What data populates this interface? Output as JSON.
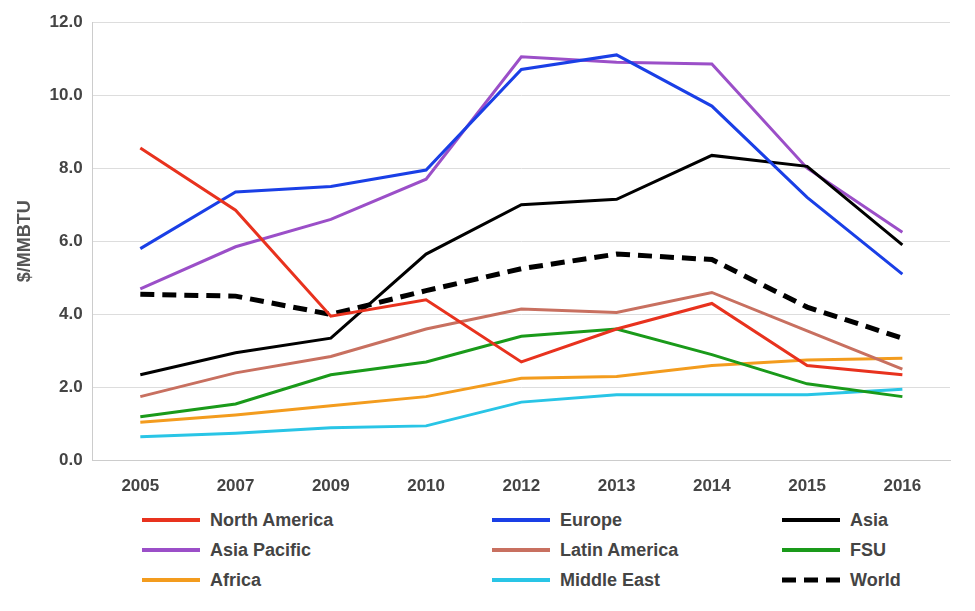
{
  "chart_data": {
    "type": "line",
    "y_label": "$/MMBTU",
    "categories": [
      "2005",
      "2007",
      "2009",
      "2010",
      "2012",
      "2013",
      "2014",
      "2015",
      "2016"
    ],
    "series": [
      {
        "name": "North America",
        "color": "#e8321e",
        "values": [
          8.55,
          6.85,
          3.95,
          4.4,
          2.7,
          3.6,
          4.3,
          2.6,
          2.35
        ]
      },
      {
        "name": "Europe",
        "color": "#1a3fe6",
        "values": [
          5.8,
          7.35,
          7.5,
          7.95,
          10.7,
          11.1,
          9.7,
          7.2,
          5.1
        ]
      },
      {
        "name": "Asia",
        "color": "#000000",
        "values": [
          2.35,
          2.95,
          3.35,
          5.65,
          7.0,
          7.15,
          8.35,
          8.05,
          5.9
        ]
      },
      {
        "name": "Asia Pacific",
        "color": "#9b4fc8",
        "values": [
          4.7,
          5.85,
          6.6,
          7.7,
          11.05,
          10.9,
          10.85,
          8.0,
          6.25
        ]
      },
      {
        "name": "Latin America",
        "color": "#c87060",
        "values": [
          1.75,
          2.4,
          2.85,
          3.6,
          4.15,
          4.05,
          4.6,
          3.55,
          2.5
        ]
      },
      {
        "name": "FSU",
        "color": "#1a9a1a",
        "values": [
          1.2,
          1.55,
          2.35,
          2.7,
          3.4,
          3.6,
          2.9,
          2.1,
          1.75
        ]
      },
      {
        "name": "Africa",
        "color": "#f39c1e",
        "values": [
          1.05,
          1.25,
          1.5,
          1.75,
          2.25,
          2.3,
          2.6,
          2.75,
          2.8
        ]
      },
      {
        "name": "Middle East",
        "color": "#29c5e6",
        "values": [
          0.65,
          0.75,
          0.9,
          0.95,
          1.6,
          1.8,
          1.8,
          1.8,
          1.95
        ]
      },
      {
        "name": "World",
        "color": "#000000",
        "line_style": "dashed",
        "values": [
          4.55,
          4.5,
          4.0,
          4.65,
          5.25,
          5.65,
          5.5,
          4.2,
          3.35
        ]
      }
    ],
    "ylim": [
      0,
      12
    ],
    "yticks": [
      {
        "value": 0,
        "label": "0.0"
      },
      {
        "value": 2,
        "label": "2.0"
      },
      {
        "value": 4,
        "label": "4.0"
      },
      {
        "value": 6,
        "label": "6.0"
      },
      {
        "value": 8,
        "label": "8.0"
      },
      {
        "value": 10,
        "label": "10.0"
      },
      {
        "value": 12,
        "label": "12.0"
      }
    ],
    "grid": true,
    "legend": "bottom",
    "marker": "none"
  }
}
